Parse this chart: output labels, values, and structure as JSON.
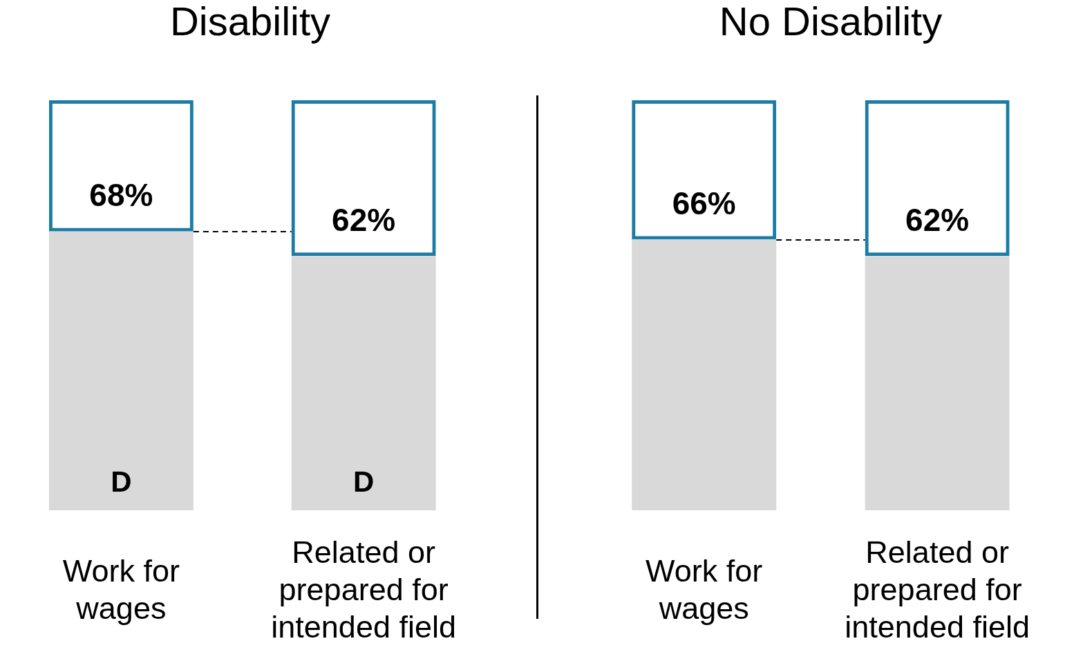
{
  "chart_data": [
    {
      "type": "bar",
      "title": "Disability",
      "categories": [
        "Work for wages",
        "Related or prepared for intended field"
      ],
      "stacked": true,
      "tick_labels": "x",
      "series": [
        {
          "color": "#d9d9d9",
          "values": [
            68,
            62
          ],
          "value_labels": [
            "68%",
            "62%"
          ]
        },
        {
          "color": "#1b7ca6",
          "values": [
            32,
            38
          ]
        }
      ],
      "ref_lines": [
        {
          "axis": "y",
          "value": 68,
          "color": "#000000",
          "line_style": "dashed"
        }
      ],
      "annotations": [
        {
          "text": "D",
          "x": "Work for wages",
          "y": 0
        },
        {
          "text": "D",
          "x": "Related or prepared for intended field",
          "y": 0
        }
      ]
    },
    {
      "type": "bar",
      "title": "No Disability",
      "categories": [
        "Work for wages",
        "Related or prepared for intended field"
      ],
      "stacked": true,
      "tick_labels": "x",
      "series": [
        {
          "color": "#d9d9d9",
          "values": [
            66,
            62
          ],
          "value_labels": [
            "66%",
            "62%"
          ]
        },
        {
          "color": "#1b7ca6",
          "values": [
            34,
            38
          ]
        }
      ],
      "ref_lines": [
        {
          "axis": "y",
          "value": 66,
          "color": "#000000",
          "line_style": "dashed"
        }
      ]
    }
  ]
}
